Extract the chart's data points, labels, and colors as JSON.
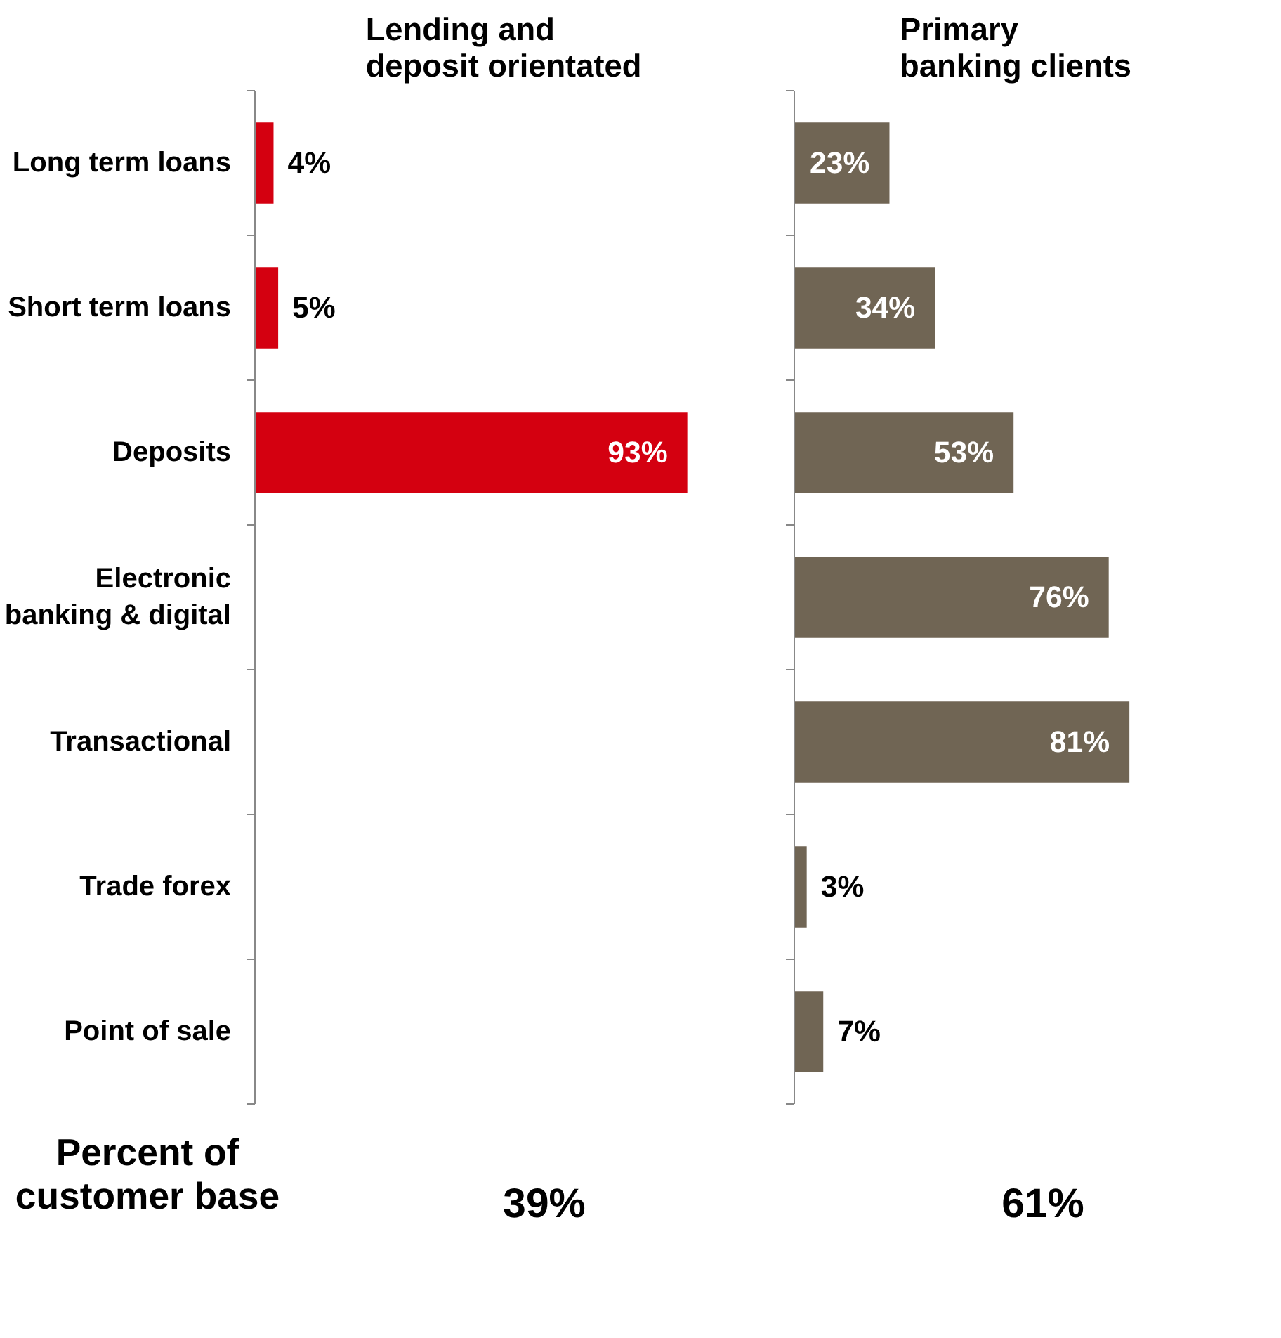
{
  "chart_data": [
    {
      "type": "bar",
      "orientation": "horizontal",
      "title": "Lending and deposit orientated",
      "categories": [
        "Long term loans",
        "Short term loans",
        "Deposits",
        "Electronic banking & digital",
        "Transactional",
        "Trade forex",
        "Point of sale"
      ],
      "values": [
        4,
        5,
        93,
        null,
        null,
        null,
        null
      ],
      "value_labels": [
        "4%",
        "5%",
        "93%",
        null,
        null,
        null,
        null
      ],
      "color": "#d40010",
      "grid": false,
      "annotations": [
        "Percent of customer base",
        "39%"
      ]
    },
    {
      "type": "bar",
      "orientation": "horizontal",
      "title": "Primary banking clients",
      "categories": [
        null,
        null,
        null,
        null,
        null,
        null,
        null
      ],
      "values": [
        23,
        34,
        53,
        76,
        81,
        3,
        7
      ],
      "value_labels": [
        "23%",
        "34%",
        "53%",
        "76%",
        "81%",
        "3%",
        "7%"
      ],
      "color": "#706554",
      "grid": false,
      "annotations": [
        "61%"
      ]
    }
  ]
}
